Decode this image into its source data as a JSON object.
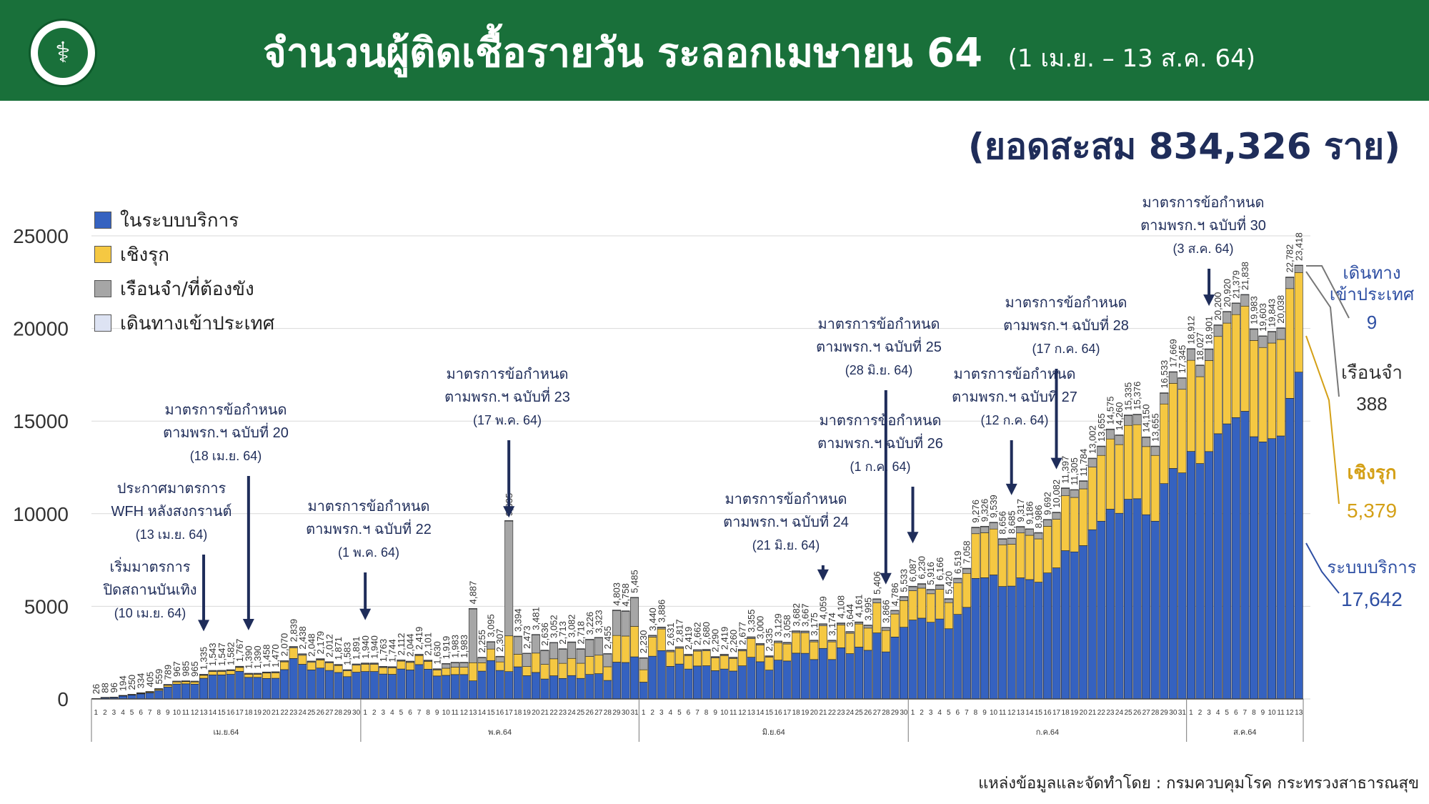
{
  "header": {
    "title": "จำนวนผู้ติดเชื้อรายวัน ระลอกเมษายน 64",
    "range": "(1 เม.ย. – 13 ส.ค. 64)",
    "total": "(ยอดสะสม 834,326 ราย)"
  },
  "logo": {
    "icon": "ministry-of-public-health-emblem"
  },
  "legend": [
    {
      "label": "ในระบบบริการ",
      "color": "#3562c0"
    },
    {
      "label": "เชิงรุก",
      "color": "#f5c842"
    },
    {
      "label": "เรือนจำ/ที่ต้องขัง",
      "color": "#a6a6a6"
    },
    {
      "label": "เดินทางเข้าประเทศ",
      "color": "#dde3f3"
    }
  ],
  "source": "แหล่งข้อมูลและจัดทำโดย : กรมควบคุมโรค กระทรวงสาธารณสุข",
  "annotations": [
    {
      "lines": [
        "เริ่มมาตรการ",
        "ปิดสถานบันเทิง",
        "(10 เม.ย. 64)"
      ],
      "day": 10
    },
    {
      "lines": [
        "ประกาศมาตรการ",
        "WFH หลังสงกรานต์",
        "(13 เม.ย. 64)"
      ],
      "day": 13
    },
    {
      "lines": [
        "มาตรการข้อกำหนด",
        "ตามพรก.ฯ ฉบับที่ 20",
        "(18 เม.ย. 64)"
      ],
      "day": 18
    },
    {
      "lines": [
        "มาตรการข้อกำหนด",
        "ตามพรก.ฯ ฉบับที่ 22",
        "(1 พ.ค. 64)"
      ],
      "day": 31
    },
    {
      "lines": [
        "มาตรการข้อกำหนด",
        "ตามพรก.ฯ ฉบับที่ 23",
        "(17 พ.ค. 64)"
      ],
      "day": 47
    },
    {
      "lines": [
        "มาตรการข้อกำหนด",
        "ตามพรก.ฯ ฉบับที่ 24",
        "(21 มิ.ย. 64)"
      ],
      "day": 82
    },
    {
      "lines": [
        "มาตรการข้อกำหนด",
        "ตามพรก.ฯ ฉบับที่ 25",
        "(28 มิ.ย. 64)"
      ],
      "day": 89
    },
    {
      "lines": [
        "มาตรการข้อกำหนด",
        "ตามพรก.ฯ ฉบับที่ 26",
        "(1 ก.ค. 64)"
      ],
      "day": 92
    },
    {
      "lines": [
        "มาตรการข้อกำหนด",
        "ตามพรก.ฯ ฉบับที่ 27",
        "(12 ก.ค. 64)"
      ],
      "day": 103
    },
    {
      "lines": [
        "มาตรการข้อกำหนด",
        "ตามพรก.ฯ ฉบับที่ 28",
        "(17 ก.ค. 64)"
      ],
      "day": 108
    },
    {
      "lines": [
        "มาตรการข้อกำหนด",
        "ตามพรก.ฯ ฉบับที่ 30",
        "(3 ส.ค. 64)"
      ],
      "day": 125
    }
  ],
  "side_labels": [
    {
      "name": "เดินทาง",
      "name2": "เข้าประเทศ",
      "value": "9",
      "color": "#2e4fa3"
    },
    {
      "name": "เรือนจำ",
      "value": "388",
      "color": "#333333"
    },
    {
      "name": "เชิงรุก",
      "value": "5,379",
      "color": "#d4a017"
    },
    {
      "name": "ระบบบริการ",
      "value": "17,642",
      "color": "#2e4fa3"
    }
  ],
  "chart_data": {
    "type": "bar",
    "stacked": true,
    "ylim": [
      0,
      25000
    ],
    "yticks": [
      0,
      5000,
      10000,
      15000,
      20000,
      25000
    ],
    "grid": true,
    "legend_position": "top-left",
    "months": [
      {
        "label": "เม.ย.64",
        "start": 1,
        "days": 30
      },
      {
        "label": "พ.ค.64",
        "start": 31,
        "days": 31
      },
      {
        "label": "มิ.ย.64",
        "start": 62,
        "days": 30
      },
      {
        "label": "ก.ค.64",
        "start": 92,
        "days": 31
      },
      {
        "label": "ส.ค.64",
        "start": 123,
        "days": 13
      }
    ],
    "totals": [
      26,
      88,
      96,
      194,
      250,
      334,
      405,
      559,
      789,
      967,
      985,
      965,
      1335,
      1543,
      1547,
      1582,
      1767,
      1390,
      1390,
      1458,
      1470,
      2070,
      2839,
      2438,
      2048,
      2179,
      2012,
      1871,
      1583,
      1891,
      1940,
      1940,
      1763,
      1744,
      2112,
      2044,
      2419,
      2101,
      1630,
      1919,
      1983,
      1983,
      4887,
      2255,
      3095,
      2307,
      9635,
      3394,
      2473,
      3481,
      2636,
      3052,
      2713,
      3082,
      2718,
      3226,
      3323,
      2455,
      4803,
      4758,
      5485,
      2230,
      3440,
      3886,
      2631,
      2817,
      2419,
      2662,
      2680,
      2290,
      2419,
      2260,
      2677,
      3355,
      3000,
      2335,
      3129,
      3058,
      3682,
      3667,
      3175,
      4059,
      3174,
      4108,
      3644,
      4161,
      3995,
      5406,
      3866,
      4786,
      5533,
      6087,
      6230,
      5916,
      6166,
      5420,
      6519,
      7058,
      9276,
      9326,
      9539,
      8656,
      8685,
      9317,
      9186,
      8986,
      9692,
      10082,
      11397,
      11305,
      11784,
      13002,
      13655,
      14575,
      14260,
      15335,
      15376,
      14150,
      13655,
      16533,
      17669,
      17345,
      18912,
      18027,
      18901,
      20200,
      20920,
      21379,
      21838,
      19983,
      19603,
      19843,
      20038,
      22782,
      23418
    ],
    "series": [
      {
        "name": "ในระบบบริการ",
        "color": "#3562c0"
      },
      {
        "name": "เชิงรุก",
        "color": "#f5c842"
      },
      {
        "name": "เรือนจำ/ที่ต้องขัง",
        "color": "#a6a6a6"
      },
      {
        "name": "เดินทางเข้าประเทศ",
        "color": "#dde3f3"
      }
    ]
  }
}
